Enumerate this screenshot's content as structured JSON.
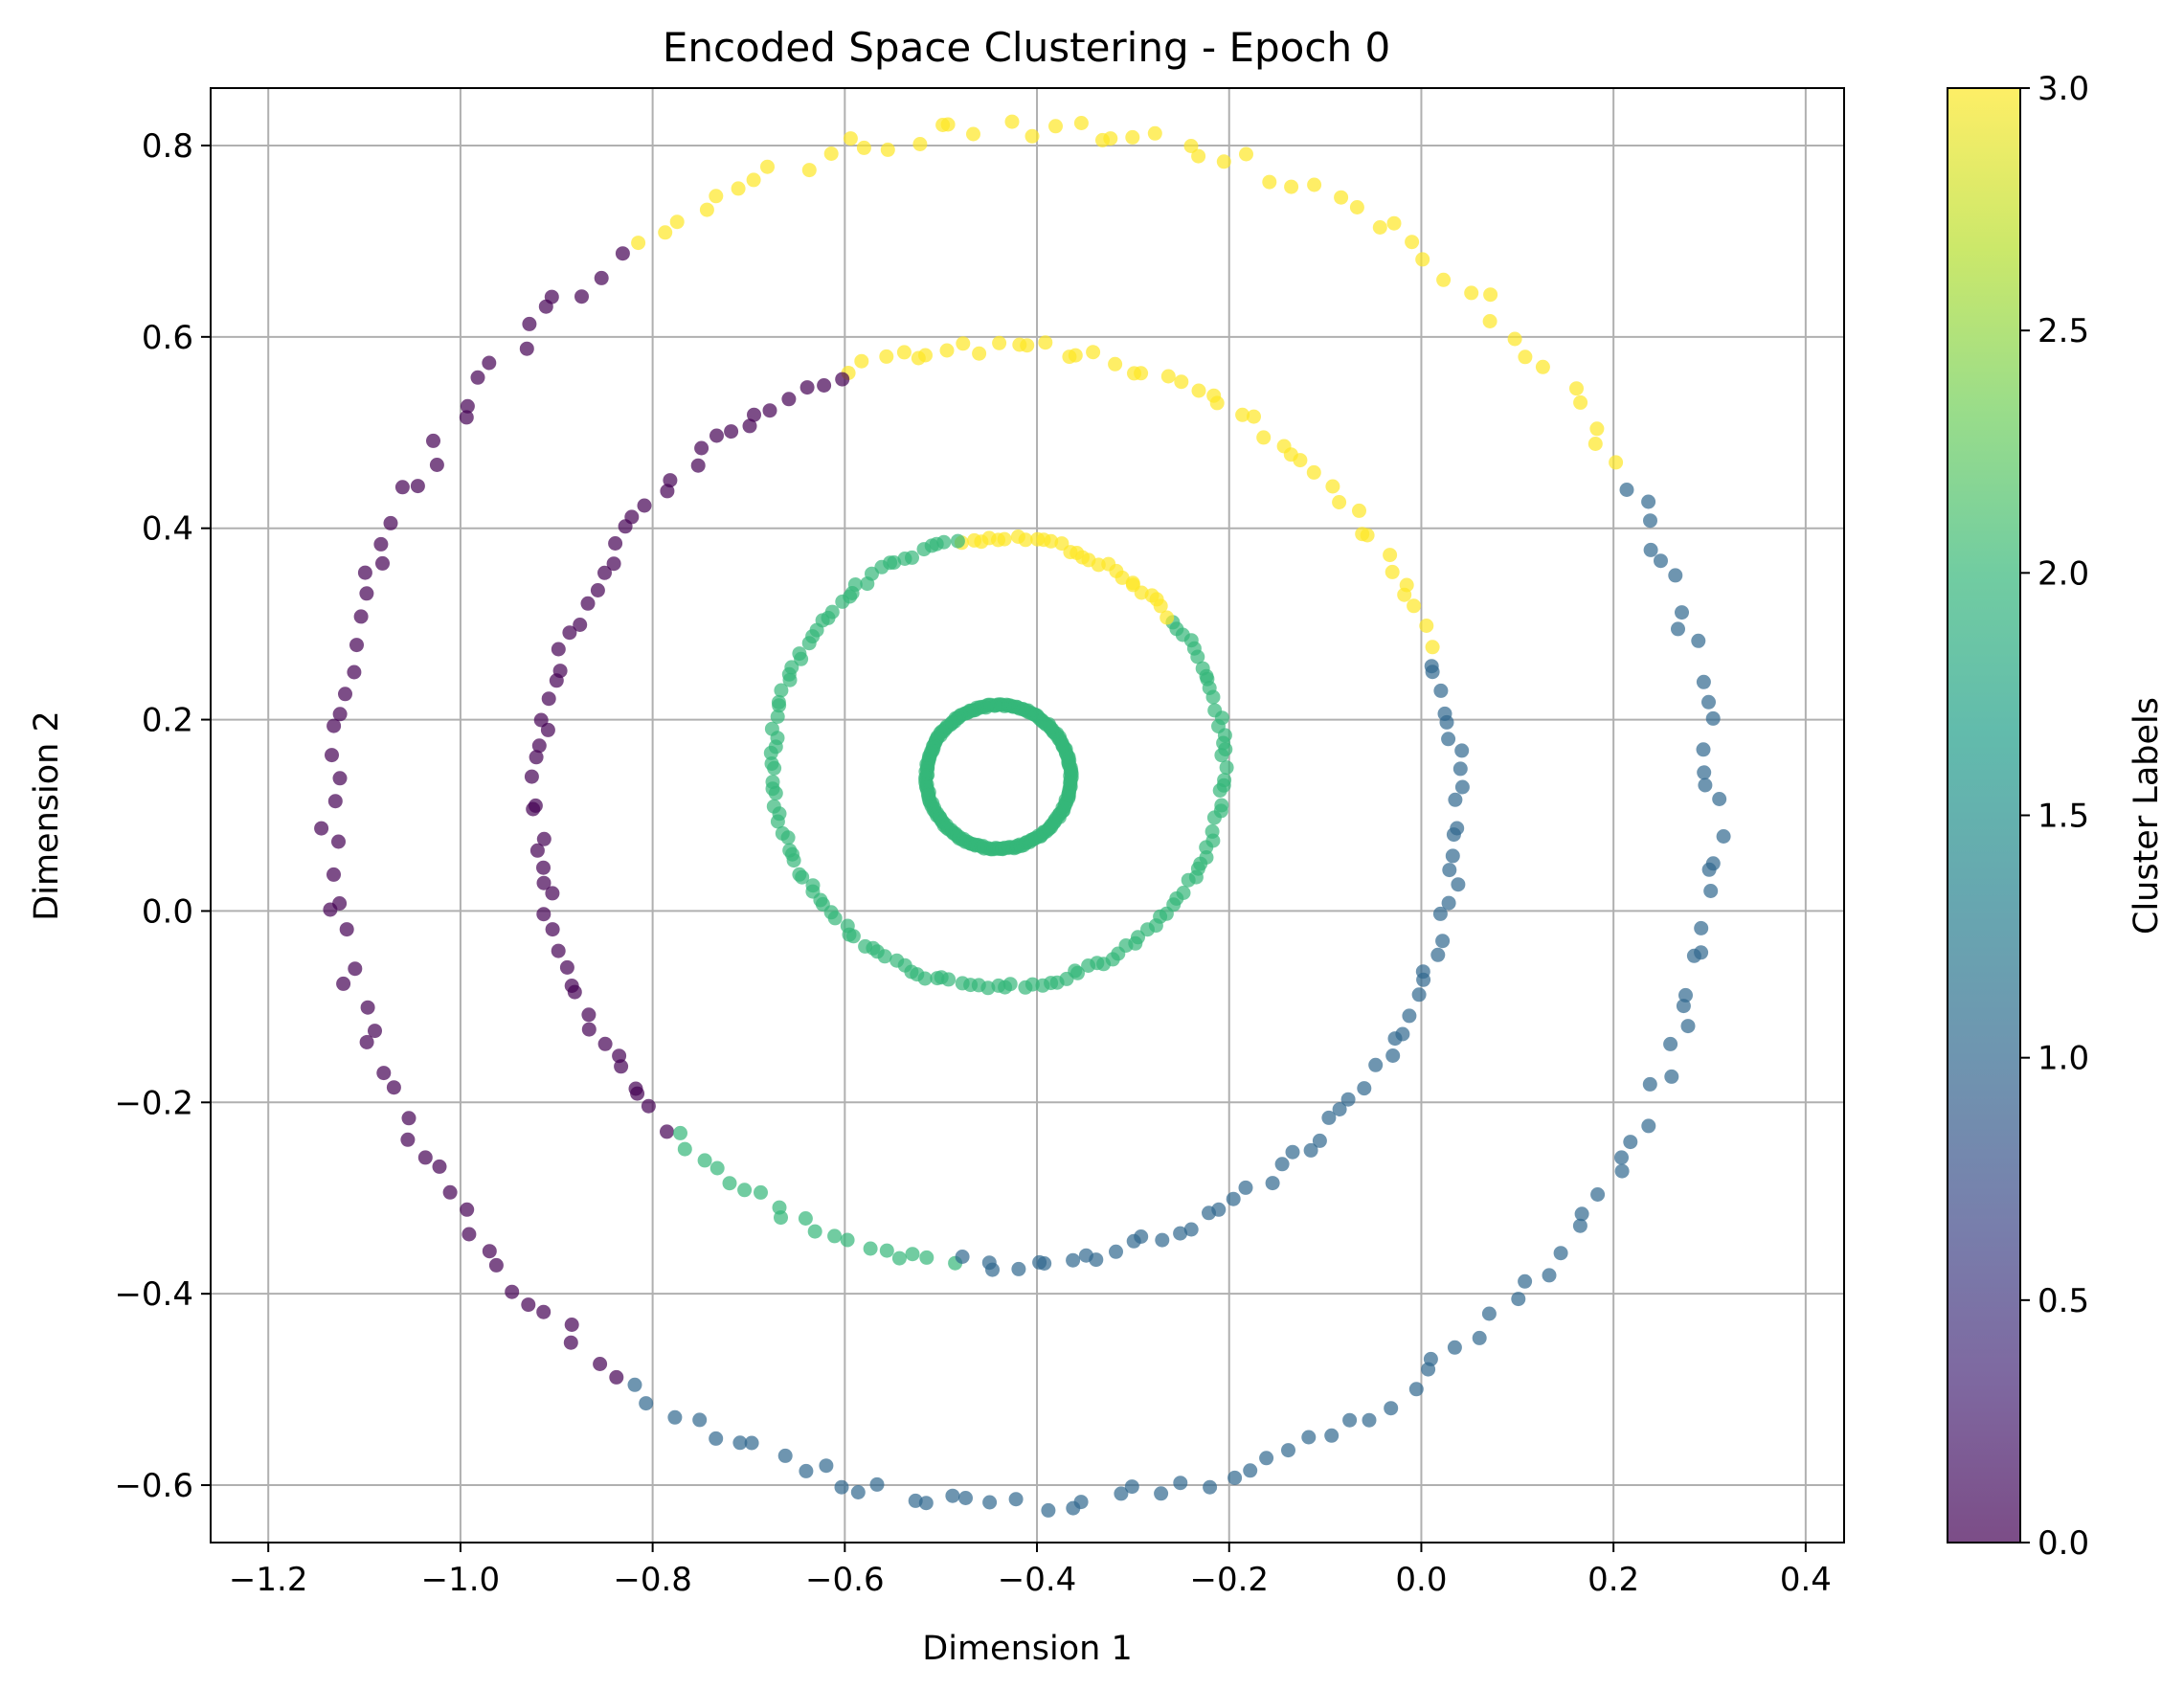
{
  "chart_data": {
    "type": "scatter",
    "title": "Encoded Space Clustering - Epoch 0",
    "xlabel": "Dimension 1",
    "ylabel": "Dimension 2",
    "xlim": [
      -1.26,
      0.44
    ],
    "ylim": [
      -0.66,
      0.86
    ],
    "x_ticks": [
      -1.2,
      -1.0,
      -0.8,
      -0.6,
      -0.4,
      -0.2,
      0.0,
      0.2,
      0.4
    ],
    "x_tick_labels": [
      "−1.2",
      "−1.0",
      "−0.8",
      "−0.6",
      "−0.4",
      "−0.2",
      "0.0",
      "0.2",
      "0.4"
    ],
    "y_ticks": [
      -0.6,
      -0.4,
      -0.2,
      0.0,
      0.2,
      0.4,
      0.6,
      0.8
    ],
    "y_tick_labels": [
      "−0.6",
      "−0.4",
      "−0.2",
      "0.0",
      "0.2",
      "0.4",
      "0.6",
      "0.8"
    ],
    "grid": true,
    "colormap": "viridis",
    "point_alpha": 0.7,
    "colorbar": {
      "label": "Cluster Labels",
      "range": [
        0.0,
        3.0
      ],
      "ticks": [
        0.0,
        0.5,
        1.0,
        1.5,
        2.0,
        2.5,
        3.0
      ],
      "tick_labels": [
        "0.0",
        "0.5",
        "1.0",
        "1.5",
        "2.0",
        "2.5",
        "3.0"
      ],
      "stops": [
        "#440154",
        "#482878",
        "#3e4989",
        "#31688e",
        "#26828e",
        "#1f9e89",
        "#35b779",
        "#6ece58",
        "#b5de2b",
        "#fde725"
      ]
    },
    "cluster_colors": {
      "0": "#440154",
      "1": "#31688e",
      "2": "#35b779",
      "3": "#fde725"
    },
    "rings": [
      {
        "center": [
          -0.44,
          0.14
        ],
        "radius": 0.075,
        "n_points": 220,
        "segments": [
          {
            "from_deg": 0,
            "to_deg": 360,
            "label": 2
          }
        ]
      },
      {
        "center": [
          -0.44,
          0.155
        ],
        "radius": 0.235,
        "n_points": 160,
        "segments": [
          {
            "from_deg": 0,
            "to_deg": 40,
            "label": 2
          },
          {
            "from_deg": 40,
            "to_deg": 100,
            "label": 3
          },
          {
            "from_deg": 100,
            "to_deg": 360,
            "label": 2
          }
        ]
      },
      {
        "center": [
          -0.44,
          0.11
        ],
        "radius": 0.48,
        "n_points": 170,
        "segments": [
          {
            "from_deg": -5,
            "to_deg": 20,
            "label": 1
          },
          {
            "from_deg": 20,
            "to_deg": 110,
            "label": 3
          },
          {
            "from_deg": 110,
            "to_deg": 225,
            "label": 0
          },
          {
            "from_deg": 225,
            "to_deg": 265,
            "label": 2
          },
          {
            "from_deg": 265,
            "to_deg": 355,
            "label": 1
          }
        ]
      },
      {
        "center": [
          -0.415,
          0.1
        ],
        "radius": 0.72,
        "n_points": 190,
        "segments": [
          {
            "from_deg": -40,
            "to_deg": 30,
            "label": 1
          },
          {
            "from_deg": 30,
            "to_deg": 125,
            "label": 3
          },
          {
            "from_deg": 125,
            "to_deg": 235,
            "label": 0
          },
          {
            "from_deg": 235,
            "to_deg": 320,
            "label": 1
          }
        ]
      }
    ]
  }
}
